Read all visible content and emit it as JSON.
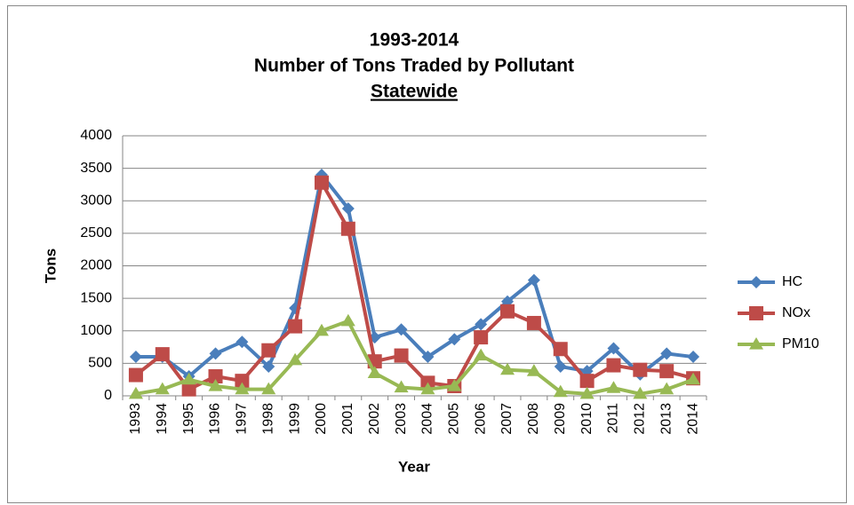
{
  "chart_data": {
    "type": "line",
    "title": [
      "1993-2014",
      "Number of Tons Traded by Pollutant",
      "Statewide"
    ],
    "x_label": "Year",
    "y_label": "Tons",
    "categories": [
      "1993",
      "1994",
      "1995",
      "1996",
      "1997",
      "1998",
      "1999",
      "2000",
      "2001",
      "2002",
      "2003",
      "2004",
      "2005",
      "2006",
      "2007",
      "2008",
      "2009",
      "2010",
      "2011",
      "2012",
      "2013",
      "2014"
    ],
    "series": [
      {
        "name": "HC",
        "color": "#4a7ebb",
        "marker": "diamond",
        "values": [
          600,
          600,
          300,
          650,
          830,
          450,
          1350,
          3400,
          2880,
          900,
          1020,
          600,
          870,
          1100,
          1450,
          1780,
          450,
          380,
          730,
          330,
          650,
          600
        ]
      },
      {
        "name": "NOx",
        "color": "#be4b48",
        "marker": "square",
        "values": [
          320,
          640,
          100,
          300,
          230,
          700,
          1070,
          3280,
          2570,
          530,
          620,
          200,
          150,
          900,
          1300,
          1120,
          720,
          230,
          470,
          400,
          380,
          270
        ]
      },
      {
        "name": "PM10",
        "color": "#98b954",
        "marker": "triangle",
        "values": [
          30,
          100,
          250,
          150,
          100,
          100,
          550,
          1000,
          1150,
          350,
          130,
          100,
          150,
          620,
          400,
          380,
          60,
          30,
          120,
          30,
          100,
          250
        ]
      }
    ],
    "ylim": [
      0,
      4000
    ],
    "yticks": [
      0,
      500,
      1000,
      1500,
      2000,
      2500,
      3000,
      3500,
      4000
    ],
    "grid": true,
    "legend": "right"
  }
}
